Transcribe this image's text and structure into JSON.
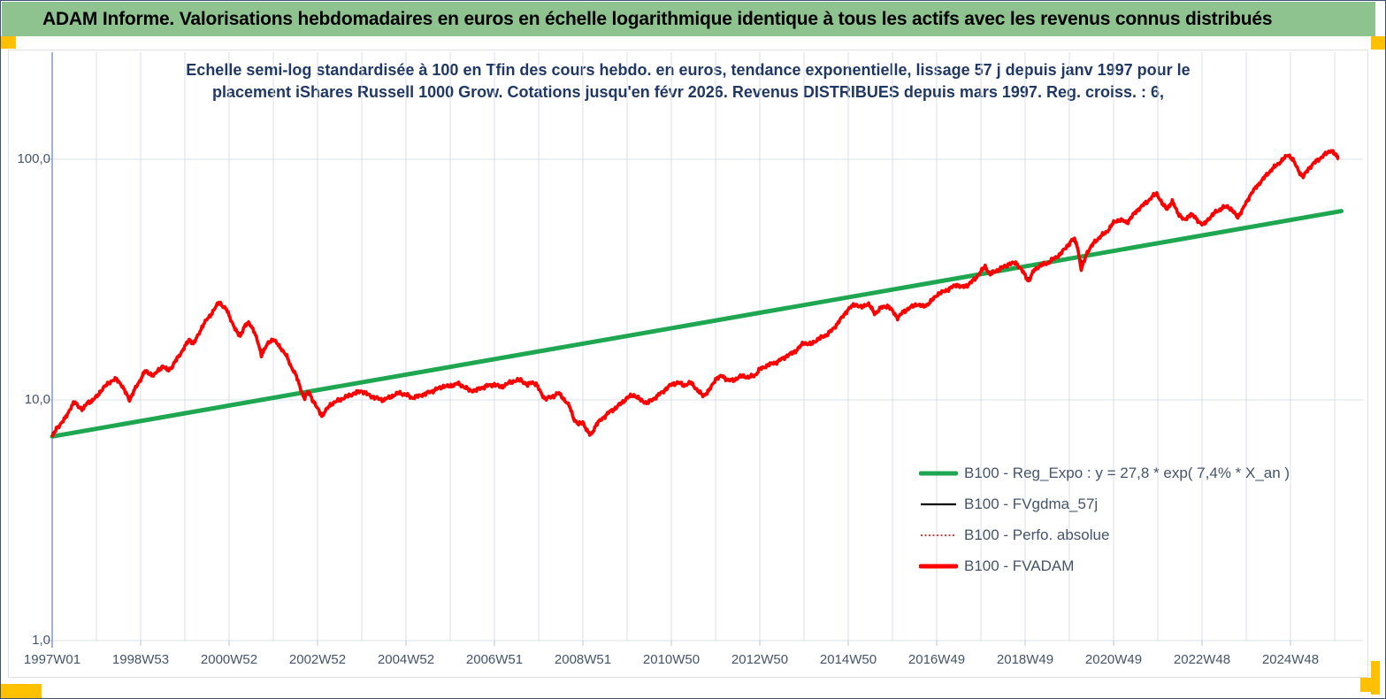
{
  "window": {
    "header_title": "ADAM Informe. Valorisations hebdomadaires en euros en échelle logarithmique identique à tous les actifs avec les revenus connus distribués"
  },
  "colors": {
    "header_bg": "#8ec28e",
    "accent_yellow": "#ffc000",
    "title_navy": "#1f3864",
    "axis_text": "#44546a",
    "gridline": "#d9dfe9",
    "axis_line": "#7f9cc9",
    "trend_green": "#1ea750",
    "fvadam_red": "#ff0000",
    "perfo_dotted_red": "#c00000",
    "smoothed_black": "#000000"
  },
  "chart_data": {
    "type": "line",
    "title_line1": "Echelle semi-log standardisée à 100 en Tfin des cours hebdo. en euros, tendance exponentielle, lissage 57 j depuis janv 1997 pour le",
    "title_line2": "placement iShares Russell 1000 Grow. Cotations jusqu'en févr 2026. Revenus DISTRIBUES depuis mars 1997.  Reg. croiss. : 6,",
    "x_axis": {
      "labels": [
        "1997W01",
        "1998W53",
        "2000W52",
        "2002W52",
        "2004W52",
        "2006W51",
        "2008W51",
        "2010W50",
        "2012W50",
        "2014W50",
        "2016W49",
        "2018W49",
        "2020W49",
        "2022W48",
        "2024W48"
      ],
      "label_years": [
        1997,
        1999,
        2001,
        2003,
        2005,
        2007,
        2009,
        2011,
        2013,
        2015,
        2017,
        2019,
        2021,
        2023,
        2025
      ],
      "start_year": 1997.0,
      "end_year": 2026.15,
      "minor_grid_every_years": 1
    },
    "y_axis": {
      "scale": "log",
      "labels": [
        "100,0",
        "10,0",
        "1,0"
      ],
      "values": [
        100,
        10,
        1
      ],
      "range": [
        1,
        180
      ]
    },
    "legend": [
      {
        "label": "B100 - Reg_Expo : y = 27,8 * exp( 7,4% *  X_an )",
        "color": "#1ea750",
        "style": "solid-thick"
      },
      {
        "label": "B100 - FVgdma_57j",
        "color": "#000000",
        "style": "solid-thin"
      },
      {
        "label": "B100 - Perfo. absolue",
        "color": "#c00000",
        "style": "dotted"
      },
      {
        "label": "B100 - FVADAM",
        "color": "#ff0000",
        "style": "solid-thick"
      }
    ],
    "series": [
      {
        "name": "B100 - Reg_Expo",
        "kind": "exponential_trend",
        "points": [
          [
            1997.0,
            7.05
          ],
          [
            2026.15,
            60.9
          ]
        ]
      },
      {
        "name": "B100 - FVADAM",
        "kind": "weekly_values",
        "anchors": [
          [
            1997.0,
            7.0
          ],
          [
            1997.1,
            7.6
          ],
          [
            1997.2,
            8.0
          ],
          [
            1997.3,
            8.4
          ],
          [
            1997.42,
            9.3
          ],
          [
            1997.5,
            9.8
          ],
          [
            1997.6,
            9.4
          ],
          [
            1997.7,
            9.1
          ],
          [
            1997.8,
            9.8
          ],
          [
            1997.9,
            9.9
          ],
          [
            1998.0,
            10.3
          ],
          [
            1998.1,
            10.9
          ],
          [
            1998.2,
            11.4
          ],
          [
            1998.3,
            11.9
          ],
          [
            1998.45,
            12.2
          ],
          [
            1998.55,
            11.7
          ],
          [
            1998.65,
            10.8
          ],
          [
            1998.75,
            10.0
          ],
          [
            1998.85,
            10.9
          ],
          [
            1999.0,
            12.2
          ],
          [
            1999.1,
            13.2
          ],
          [
            1999.2,
            12.9
          ],
          [
            1999.3,
            12.6
          ],
          [
            1999.4,
            13.3
          ],
          [
            1999.5,
            13.8
          ],
          [
            1999.6,
            13.3
          ],
          [
            1999.7,
            13.6
          ],
          [
            1999.8,
            14.6
          ],
          [
            1999.9,
            15.6
          ],
          [
            2000.0,
            16.6
          ],
          [
            2000.1,
            17.9
          ],
          [
            2000.2,
            17.1
          ],
          [
            2000.3,
            18.6
          ],
          [
            2000.4,
            20.3
          ],
          [
            2000.5,
            21.6
          ],
          [
            2000.6,
            22.8
          ],
          [
            2000.7,
            24.3
          ],
          [
            2000.78,
            25.6
          ],
          [
            2000.85,
            24.6
          ],
          [
            2000.95,
            23.6
          ],
          [
            2001.05,
            21.4
          ],
          [
            2001.15,
            19.4
          ],
          [
            2001.25,
            18.4
          ],
          [
            2001.35,
            20.2
          ],
          [
            2001.45,
            21.0
          ],
          [
            2001.55,
            19.6
          ],
          [
            2001.65,
            17.4
          ],
          [
            2001.73,
            15.4
          ],
          [
            2001.8,
            16.2
          ],
          [
            2001.9,
            17.4
          ],
          [
            2002.0,
            17.9
          ],
          [
            2002.1,
            17.0
          ],
          [
            2002.2,
            16.2
          ],
          [
            2002.3,
            15.2
          ],
          [
            2002.4,
            13.8
          ],
          [
            2002.5,
            12.8
          ],
          [
            2002.6,
            11.4
          ],
          [
            2002.7,
            10.1
          ],
          [
            2002.8,
            10.9
          ],
          [
            2002.9,
            9.9
          ],
          [
            2003.0,
            9.2
          ],
          [
            2003.1,
            8.6
          ],
          [
            2003.2,
            9.1
          ],
          [
            2003.3,
            9.6
          ],
          [
            2003.45,
            9.9
          ],
          [
            2003.6,
            10.2
          ],
          [
            2003.8,
            10.6
          ],
          [
            2004.0,
            10.9
          ],
          [
            2004.15,
            10.5
          ],
          [
            2004.3,
            10.2
          ],
          [
            2004.5,
            10.0
          ],
          [
            2004.7,
            10.4
          ],
          [
            2004.85,
            10.7
          ],
          [
            2005.0,
            10.5
          ],
          [
            2005.15,
            10.2
          ],
          [
            2005.3,
            10.4
          ],
          [
            2005.5,
            10.7
          ],
          [
            2005.7,
            11.1
          ],
          [
            2005.85,
            11.4
          ],
          [
            2006.0,
            11.4
          ],
          [
            2006.15,
            11.7
          ],
          [
            2006.3,
            11.4
          ],
          [
            2006.45,
            10.9
          ],
          [
            2006.6,
            11.0
          ],
          [
            2006.8,
            11.4
          ],
          [
            2007.0,
            11.6
          ],
          [
            2007.15,
            11.3
          ],
          [
            2007.3,
            11.7
          ],
          [
            2007.45,
            12.0
          ],
          [
            2007.6,
            12.1
          ],
          [
            2007.75,
            11.5
          ],
          [
            2007.85,
            11.9
          ],
          [
            2007.95,
            11.6
          ],
          [
            2008.05,
            10.7
          ],
          [
            2008.15,
            10.1
          ],
          [
            2008.3,
            10.3
          ],
          [
            2008.45,
            10.7
          ],
          [
            2008.55,
            10.2
          ],
          [
            2008.7,
            9.4
          ],
          [
            2008.8,
            8.3
          ],
          [
            2008.9,
            7.9
          ],
          [
            2009.0,
            8.1
          ],
          [
            2009.1,
            7.4
          ],
          [
            2009.18,
            7.1
          ],
          [
            2009.3,
            7.9
          ],
          [
            2009.45,
            8.4
          ],
          [
            2009.6,
            8.9
          ],
          [
            2009.75,
            9.3
          ],
          [
            2009.9,
            9.8
          ],
          [
            2010.0,
            10.2
          ],
          [
            2010.15,
            10.5
          ],
          [
            2010.3,
            10.0
          ],
          [
            2010.45,
            9.7
          ],
          [
            2010.6,
            10.1
          ],
          [
            2010.8,
            10.8
          ],
          [
            2011.0,
            11.6
          ],
          [
            2011.15,
            11.8
          ],
          [
            2011.3,
            11.5
          ],
          [
            2011.45,
            11.8
          ],
          [
            2011.6,
            10.9
          ],
          [
            2011.72,
            10.4
          ],
          [
            2011.85,
            10.9
          ],
          [
            2012.0,
            12.2
          ],
          [
            2012.15,
            12.6
          ],
          [
            2012.3,
            12.0
          ],
          [
            2012.45,
            12.2
          ],
          [
            2012.6,
            12.6
          ],
          [
            2012.75,
            12.4
          ],
          [
            2012.9,
            12.7
          ],
          [
            2013.0,
            13.4
          ],
          [
            2013.2,
            14.0
          ],
          [
            2013.4,
            14.4
          ],
          [
            2013.6,
            15.2
          ],
          [
            2013.8,
            15.9
          ],
          [
            2014.0,
            17.3
          ],
          [
            2014.15,
            17.0
          ],
          [
            2014.3,
            17.8
          ],
          [
            2014.5,
            18.6
          ],
          [
            2014.65,
            19.6
          ],
          [
            2014.8,
            21.3
          ],
          [
            2015.0,
            23.8
          ],
          [
            2015.15,
            25.0
          ],
          [
            2015.3,
            24.2
          ],
          [
            2015.45,
            25.2
          ],
          [
            2015.6,
            22.8
          ],
          [
            2015.75,
            24.2
          ],
          [
            2015.9,
            24.6
          ],
          [
            2016.0,
            23.4
          ],
          [
            2016.12,
            21.9
          ],
          [
            2016.25,
            23.3
          ],
          [
            2016.4,
            24.2
          ],
          [
            2016.55,
            25.0
          ],
          [
            2016.7,
            24.4
          ],
          [
            2016.85,
            25.4
          ],
          [
            2017.0,
            27.3
          ],
          [
            2017.15,
            28.2
          ],
          [
            2017.3,
            29.0
          ],
          [
            2017.45,
            30.2
          ],
          [
            2017.55,
            29.4
          ],
          [
            2017.7,
            30.0
          ],
          [
            2017.85,
            31.6
          ],
          [
            2018.0,
            34.1
          ],
          [
            2018.1,
            36.0
          ],
          [
            2018.2,
            33.2
          ],
          [
            2018.35,
            34.4
          ],
          [
            2018.5,
            35.6
          ],
          [
            2018.65,
            36.8
          ],
          [
            2018.8,
            37.2
          ],
          [
            2018.9,
            35.0
          ],
          [
            2019.0,
            33.0
          ],
          [
            2019.08,
            31.0
          ],
          [
            2019.2,
            34.6
          ],
          [
            2019.35,
            36.2
          ],
          [
            2019.5,
            37.0
          ],
          [
            2019.65,
            38.6
          ],
          [
            2019.8,
            40.4
          ],
          [
            2019.95,
            43.6
          ],
          [
            2020.1,
            47.0
          ],
          [
            2020.18,
            44.0
          ],
          [
            2020.27,
            34.6
          ],
          [
            2020.4,
            41.0
          ],
          [
            2020.55,
            44.8
          ],
          [
            2020.7,
            47.8
          ],
          [
            2020.85,
            50.0
          ],
          [
            2021.0,
            54.6
          ],
          [
            2021.15,
            56.2
          ],
          [
            2021.3,
            54.4
          ],
          [
            2021.45,
            59.0
          ],
          [
            2021.6,
            63.0
          ],
          [
            2021.75,
            66.4
          ],
          [
            2021.9,
            70.6
          ],
          [
            2021.98,
            72.0
          ],
          [
            2022.1,
            65.4
          ],
          [
            2022.2,
            62.0
          ],
          [
            2022.33,
            66.8
          ],
          [
            2022.45,
            60.0
          ],
          [
            2022.6,
            55.6
          ],
          [
            2022.75,
            59.4
          ],
          [
            2022.9,
            55.8
          ],
          [
            2023.03,
            53.2
          ],
          [
            2023.15,
            56.6
          ],
          [
            2023.3,
            60.2
          ],
          [
            2023.45,
            62.6
          ],
          [
            2023.58,
            63.8
          ],
          [
            2023.7,
            60.8
          ],
          [
            2023.8,
            57.4
          ],
          [
            2023.9,
            61.0
          ],
          [
            2024.0,
            66.0
          ],
          [
            2024.1,
            71.6
          ],
          [
            2024.25,
            77.6
          ],
          [
            2024.4,
            83.6
          ],
          [
            2024.55,
            89.8
          ],
          [
            2024.7,
            95.0
          ],
          [
            2024.85,
            100.6
          ],
          [
            2024.95,
            104.6
          ],
          [
            2025.05,
            100.0
          ],
          [
            2025.15,
            92.0
          ],
          [
            2025.28,
            84.0
          ],
          [
            2025.4,
            91.0
          ],
          [
            2025.55,
            97.0
          ],
          [
            2025.7,
            102.0
          ],
          [
            2025.82,
            106.0
          ],
          [
            2025.92,
            109.0
          ],
          [
            2026.0,
            105.0
          ],
          [
            2026.1,
            100.0
          ]
        ]
      },
      {
        "name": "B100 - FVgdma_57j",
        "kind": "smoothed_57d_of_FVADAM"
      },
      {
        "name": "B100 - Perfo. absolue",
        "kind": "dotted_same_as_FVADAM"
      }
    ]
  }
}
